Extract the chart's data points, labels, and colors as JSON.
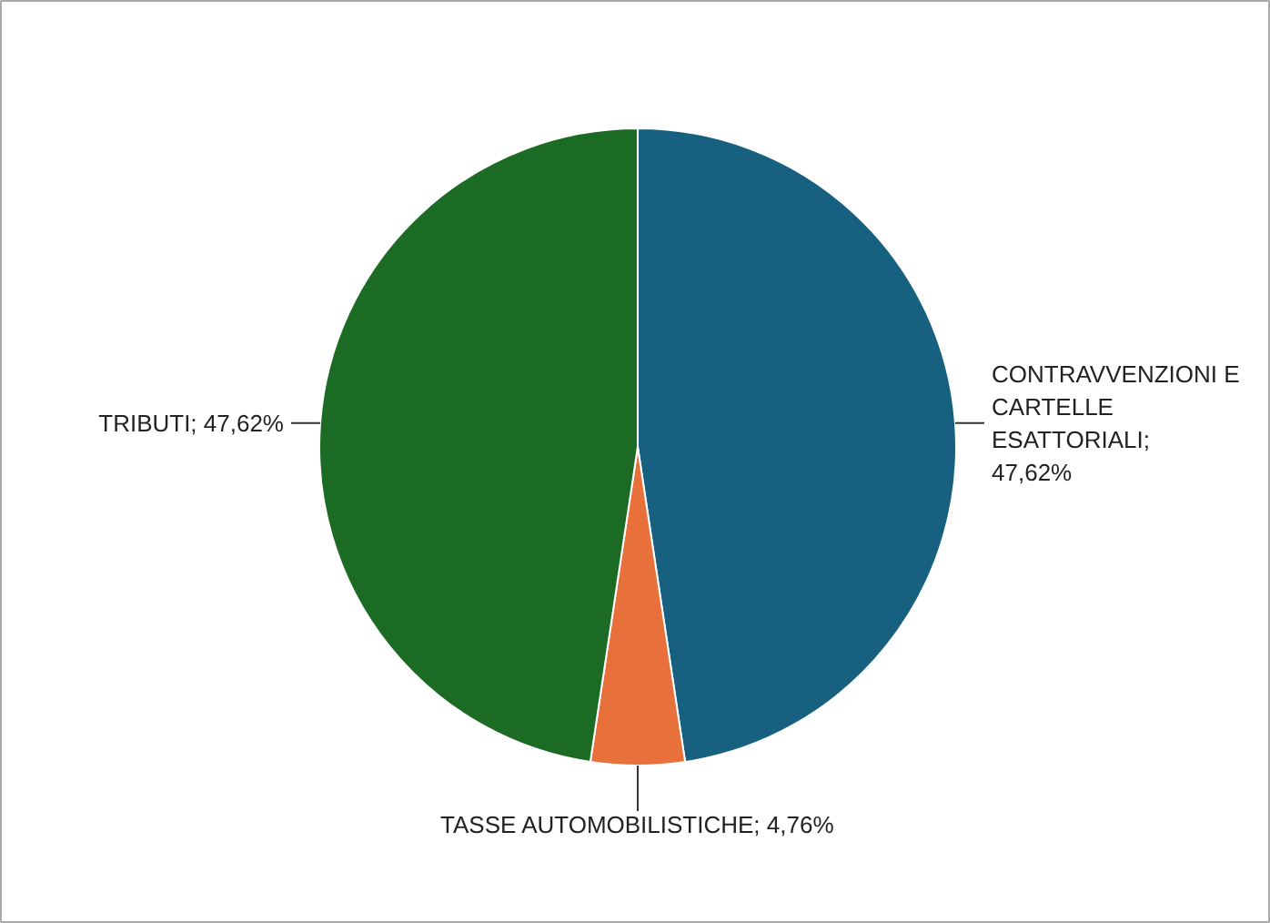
{
  "chart_data": {
    "type": "pie",
    "categories": [
      "CONTRAVVENZIONI E CARTELLE ESATTORIALI",
      "TASSE AUTOMOBILISTICHE",
      "TRIBUTI"
    ],
    "values": [
      47.62,
      4.76,
      47.62
    ],
    "value_labels": [
      "; 47,62%",
      "; 4,76%",
      "; 47,62%"
    ],
    "colors": [
      "#17607f",
      "#e8703a",
      "#1c6b25"
    ]
  }
}
